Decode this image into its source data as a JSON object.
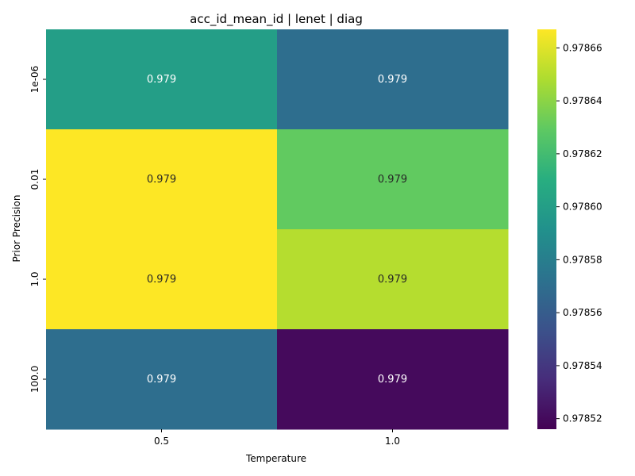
{
  "chart_data": {
    "type": "heatmap",
    "title": "acc_id_mean_id | lenet | diag",
    "xlabel": "Temperature",
    "ylabel": "Prior Precision",
    "x_categories": [
      "0.5",
      "1.0"
    ],
    "y_categories": [
      "1e-06",
      "0.01",
      "1.0",
      "100.0"
    ],
    "values": [
      [
        0.9786,
        0.97857
      ],
      [
        0.97867,
        0.97863
      ],
      [
        0.97867,
        0.97865
      ],
      [
        0.97857,
        0.97852
      ]
    ],
    "cell_labels": [
      [
        "0.979",
        "0.979"
      ],
      [
        "0.979",
        "0.979"
      ],
      [
        "0.979",
        "0.979"
      ],
      [
        "0.979",
        "0.979"
      ]
    ],
    "colormap": "viridis",
    "vmin": 0.978516,
    "vmax": 0.978667,
    "colorbar_ticks": [
      "0.97852",
      "0.97854",
      "0.97856",
      "0.97858",
      "0.97860",
      "0.97862",
      "0.97864",
      "0.97866"
    ],
    "grid": false
  }
}
